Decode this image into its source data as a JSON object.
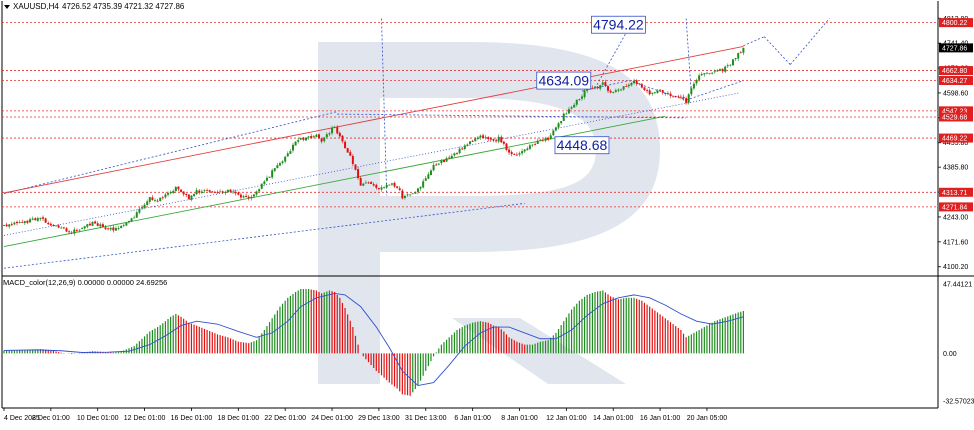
{
  "header": {
    "symbol": "XAUUSD,H4",
    "ohlc": "4726.52 4735.39 4721.32 4727.86"
  },
  "macd_header": "MACD_color(12,26,9) 0.00000 0.00000 24.69256",
  "colors": {
    "bull": "#1e8c1e",
    "bear": "#e01010",
    "level_line": "#e53030",
    "upper_channel": "#e04040",
    "lower_channel": "#3aa83a",
    "trend_blue": "#3050c8",
    "macd_signal": "#3050d0",
    "watermark": "#c8d0de",
    "current_price_tag": "#000000",
    "level_tag": "#e02020"
  },
  "chart_data": [
    {
      "type": "candlestick",
      "ylim": [
        4088,
        4825
      ],
      "price_axis_labels": [
        "4812.80",
        "4741.40",
        "4670.00",
        "4598.60",
        "4527.20",
        "4455.80",
        "4385.80",
        "4314.40",
        "4243.00",
        "4171.60",
        "4100.20"
      ],
      "x_tick_labels": [
        "4 Dec 2025",
        "8 Dec 01:00",
        "10 Dec 01:00",
        "12 Dec 01:00",
        "16 Dec 01:00",
        "18 Dec 01:00",
        "22 Dec 01:00",
        "24 Dec 01:00",
        "29 Dec 13:00",
        "31 Dec 13:00",
        "6 Jan 01:00",
        "8 Jan 01:00",
        "12 Jan 01:00",
        "14 Jan 01:00",
        "16 Jan 01:00",
        "20 Jan 05:00"
      ],
      "current_price": "4727.86",
      "horizontal_levels": [
        {
          "label": "4800.22",
          "value": 4800.22
        },
        {
          "label": "4662.80",
          "value": 4662.8
        },
        {
          "label": "4634.27",
          "value": 4634.27
        },
        {
          "label": "4547.23",
          "value": 4547.23
        },
        {
          "label": "4529.68",
          "value": 4529.68
        },
        {
          "label": "4469.22",
          "value": 4469.22
        },
        {
          "label": "4313.71",
          "value": 4313.71
        },
        {
          "label": "4271.84",
          "value": 4271.84
        }
      ],
      "annotations": [
        {
          "text": "4794.22",
          "value": 4794.22
        },
        {
          "text": "4634.09",
          "value": 4634.09
        },
        {
          "text": "4448.68",
          "value": 4448.68
        }
      ],
      "close_path": [
        [
          0,
          4218
        ],
        [
          8,
          4228
        ],
        [
          14,
          4242
        ],
        [
          17,
          4226
        ],
        [
          22,
          4210
        ],
        [
          26,
          4200
        ],
        [
          30,
          4212
        ],
        [
          34,
          4224
        ],
        [
          38,
          4215
        ],
        [
          42,
          4208
        ],
        [
          46,
          4222
        ],
        [
          50,
          4245
        ],
        [
          53,
          4275
        ],
        [
          56,
          4296
        ],
        [
          59,
          4290
        ],
        [
          62,
          4305
        ],
        [
          64,
          4318
        ],
        [
          66,
          4325
        ],
        [
          68,
          4310
        ],
        [
          71,
          4298
        ],
        [
          74,
          4315
        ],
        [
          78,
          4322
        ],
        [
          82,
          4314
        ],
        [
          86,
          4320
        ],
        [
          90,
          4305
        ],
        [
          94,
          4295
        ],
        [
          97,
          4318
        ],
        [
          100,
          4345
        ],
        [
          103,
          4372
        ],
        [
          106,
          4398
        ],
        [
          109,
          4425
        ],
        [
          112,
          4455
        ],
        [
          114,
          4465
        ],
        [
          117,
          4470
        ],
        [
          120,
          4478
        ],
        [
          122,
          4458
        ],
        [
          125,
          4488
        ],
        [
          127,
          4500
        ],
        [
          129,
          4470
        ],
        [
          131,
          4445
        ],
        [
          134,
          4400
        ],
        [
          137,
          4330
        ],
        [
          140,
          4345
        ],
        [
          143,
          4325
        ],
        [
          145,
          4330
        ],
        [
          148,
          4338
        ],
        [
          151,
          4330
        ],
        [
          153,
          4300
        ],
        [
          156,
          4305
        ],
        [
          159,
          4322
        ],
        [
          162,
          4350
        ],
        [
          165,
          4390
        ],
        [
          168,
          4400
        ],
        [
          171,
          4415
        ],
        [
          174,
          4428
        ],
        [
          177,
          4445
        ],
        [
          180,
          4460
        ],
        [
          183,
          4475
        ],
        [
          186,
          4468
        ],
        [
          188,
          4458
        ],
        [
          190,
          4470
        ],
        [
          192,
          4452
        ],
        [
          194,
          4425
        ],
        [
          197,
          4420
        ],
        [
          200,
          4438
        ],
        [
          203,
          4450
        ],
        [
          206,
          4460
        ],
        [
          209,
          4468
        ],
        [
          212,
          4495
        ],
        [
          215,
          4535
        ],
        [
          218,
          4555
        ],
        [
          221,
          4585
        ],
        [
          224,
          4610
        ],
        [
          227,
          4612
        ],
        [
          230,
          4625
        ],
        [
          233,
          4596
        ],
        [
          236,
          4605
        ],
        [
          239,
          4620
        ],
        [
          242,
          4630
        ],
        [
          245,
          4615
        ],
        [
          248,
          4596
        ],
        [
          251,
          4605
        ],
        [
          254,
          4595
        ],
        [
          257,
          4592
        ],
        [
          260,
          4582
        ],
        [
          262,
          4575
        ],
        [
          264,
          4615
        ],
        [
          267,
          4645
        ],
        [
          270,
          4655
        ],
        [
          273,
          4664
        ],
        [
          276,
          4665
        ],
        [
          279,
          4684
        ],
        [
          282,
          4710
        ],
        [
          284,
          4727.86
        ]
      ],
      "candle_seed": 12
    },
    {
      "type": "bar",
      "title": "MACD_color(12,26,9)",
      "ylim": [
        -32.57023,
        47.44121
      ],
      "y_tick_labels": [
        "47.44121",
        "0.00",
        "-32.57023"
      ],
      "histogram_x": [
        0,
        284
      ],
      "histogram": [
        [
          0,
          2
        ],
        [
          8,
          2
        ],
        [
          14,
          3
        ],
        [
          17,
          2.5
        ],
        [
          22,
          0.5
        ],
        [
          26,
          -0.5
        ],
        [
          30,
          0.5
        ],
        [
          34,
          1.5
        ],
        [
          38,
          1
        ],
        [
          42,
          0.5
        ],
        [
          46,
          2
        ],
        [
          50,
          5
        ],
        [
          53,
          10
        ],
        [
          56,
          15
        ],
        [
          59,
          18
        ],
        [
          62,
          22
        ],
        [
          64,
          25
        ],
        [
          66,
          27
        ],
        [
          68,
          25
        ],
        [
          71,
          21
        ],
        [
          74,
          19
        ],
        [
          78,
          16
        ],
        [
          82,
          13
        ],
        [
          86,
          11
        ],
        [
          90,
          8
        ],
        [
          94,
          7
        ],
        [
          97,
          9
        ],
        [
          100,
          16
        ],
        [
          103,
          24
        ],
        [
          106,
          32
        ],
        [
          109,
          38
        ],
        [
          112,
          42
        ],
        [
          114,
          44
        ],
        [
          117,
          44
        ],
        [
          120,
          43
        ],
        [
          122,
          41
        ],
        [
          125,
          43
        ],
        [
          127,
          42
        ],
        [
          129,
          38
        ],
        [
          131,
          31
        ],
        [
          134,
          18
        ],
        [
          137,
          0
        ],
        [
          140,
          -6
        ],
        [
          143,
          -12
        ],
        [
          145,
          -15
        ],
        [
          148,
          -20
        ],
        [
          151,
          -24
        ],
        [
          153,
          -28
        ],
        [
          156,
          -29
        ],
        [
          159,
          -22
        ],
        [
          162,
          -12
        ],
        [
          165,
          -2
        ],
        [
          168,
          6
        ],
        [
          171,
          11
        ],
        [
          174,
          16
        ],
        [
          177,
          19
        ],
        [
          180,
          21
        ],
        [
          183,
          22
        ],
        [
          186,
          21
        ],
        [
          188,
          19
        ],
        [
          190,
          18
        ],
        [
          192,
          15
        ],
        [
          194,
          11
        ],
        [
          197,
          8
        ],
        [
          200,
          6
        ],
        [
          203,
          6
        ],
        [
          206,
          8
        ],
        [
          209,
          9
        ],
        [
          212,
          14
        ],
        [
          215,
          22
        ],
        [
          218,
          30
        ],
        [
          221,
          36
        ],
        [
          224,
          40
        ],
        [
          227,
          42
        ],
        [
          230,
          43
        ],
        [
          233,
          39
        ],
        [
          236,
          37
        ],
        [
          239,
          38
        ],
        [
          242,
          38
        ],
        [
          245,
          36
        ],
        [
          248,
          32
        ],
        [
          251,
          28
        ],
        [
          254,
          24
        ],
        [
          257,
          20
        ],
        [
          260,
          16
        ],
        [
          262,
          11
        ],
        [
          264,
          13
        ],
        [
          267,
          16
        ],
        [
          270,
          19
        ],
        [
          273,
          22
        ],
        [
          276,
          24
        ],
        [
          279,
          26
        ],
        [
          282,
          28
        ],
        [
          284,
          29
        ]
      ],
      "signal": [
        [
          0,
          2
        ],
        [
          12,
          2.4
        ],
        [
          22,
          1.8
        ],
        [
          30,
          0.6
        ],
        [
          40,
          0.8
        ],
        [
          48,
          1.5
        ],
        [
          56,
          6
        ],
        [
          62,
          12
        ],
        [
          68,
          19
        ],
        [
          74,
          22
        ],
        [
          82,
          20
        ],
        [
          90,
          15
        ],
        [
          97,
          11
        ],
        [
          103,
          14
        ],
        [
          109,
          22
        ],
        [
          114,
          32
        ],
        [
          120,
          38
        ],
        [
          127,
          41
        ],
        [
          131,
          40
        ],
        [
          137,
          32
        ],
        [
          143,
          18
        ],
        [
          148,
          4
        ],
        [
          153,
          -12
        ],
        [
          159,
          -22
        ],
        [
          165,
          -20
        ],
        [
          171,
          -8
        ],
        [
          177,
          5
        ],
        [
          183,
          14
        ],
        [
          188,
          18
        ],
        [
          194,
          18
        ],
        [
          200,
          14
        ],
        [
          206,
          10
        ],
        [
          212,
          10
        ],
        [
          218,
          16
        ],
        [
          224,
          26
        ],
        [
          230,
          34
        ],
        [
          236,
          38
        ],
        [
          242,
          40
        ],
        [
          248,
          38
        ],
        [
          254,
          33
        ],
        [
          260,
          27
        ],
        [
          266,
          22
        ],
        [
          272,
          20
        ],
        [
          278,
          22
        ],
        [
          284,
          25
        ]
      ]
    }
  ]
}
